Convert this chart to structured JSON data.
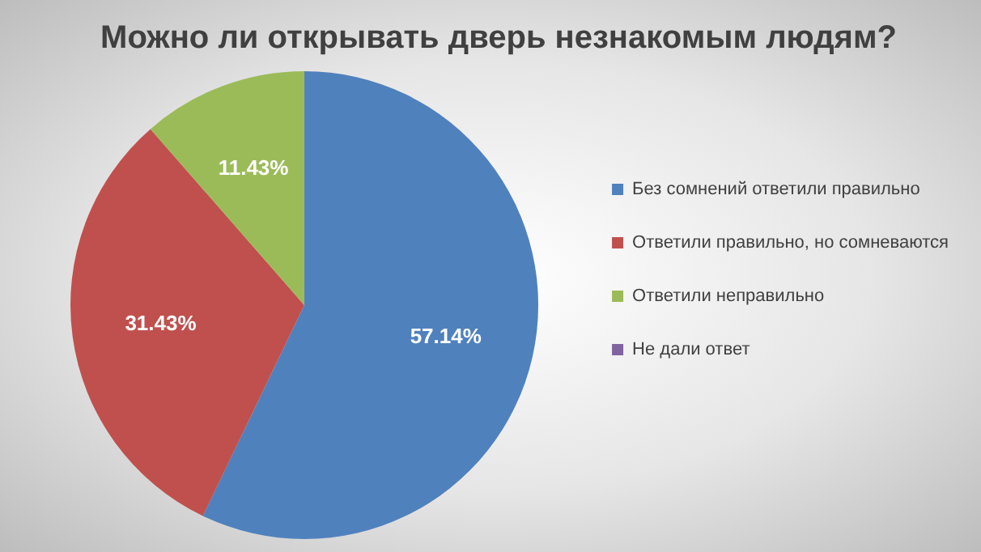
{
  "chart_data": {
    "type": "pie",
    "title": "Можно ли открывать дверь незнакомым людям?",
    "categories": [
      "Без сомнений ответили правильно",
      "Ответили правильно, но сомневаются",
      "Ответили неправильно",
      "Не дали ответ"
    ],
    "values": [
      57.14,
      31.43,
      11.43,
      0
    ],
    "colors": [
      "#4f81bd",
      "#c0504d",
      "#9bbb59",
      "#8064a2"
    ],
    "value_labels": [
      "57.14%",
      "31.43%",
      "11.43%",
      null
    ],
    "legend": "right"
  }
}
